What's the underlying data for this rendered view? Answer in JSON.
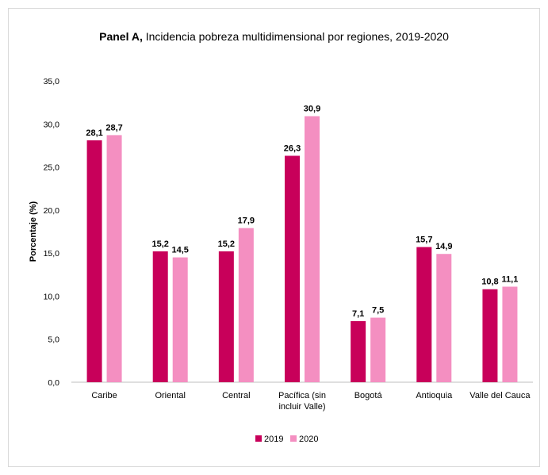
{
  "chart_data": {
    "type": "bar",
    "title_bold": "Panel A,",
    "title_rest": " Incidencia pobreza multidimensional por regiones, 2019-2020",
    "ylabel": "Porcentaje (%)",
    "xlabel": "",
    "ylim": [
      0,
      35
    ],
    "yticks": [
      "0,0",
      "5,0",
      "10,0",
      "15,0",
      "20,0",
      "25,0",
      "30,0",
      "35,0"
    ],
    "categories": [
      [
        "Caribe"
      ],
      [
        "Oriental"
      ],
      [
        "Central"
      ],
      [
        "Pacífica (sin",
        "incluir Valle)"
      ],
      [
        "Bogotá"
      ],
      [
        "Antioquia"
      ],
      [
        "Valle del Cauca"
      ]
    ],
    "series": [
      {
        "name": "2019",
        "color": "#c8005a",
        "values": [
          28.1,
          15.2,
          15.2,
          26.3,
          7.1,
          15.7,
          10.8
        ],
        "labels": [
          "28,1",
          "15,2",
          "15,2",
          "26,3",
          "7,1",
          "15,7",
          "10,8"
        ]
      },
      {
        "name": "2020",
        "color": "#f48fc1",
        "values": [
          28.7,
          14.5,
          17.9,
          30.9,
          7.5,
          14.9,
          11.1
        ],
        "labels": [
          "28,7",
          "14,5",
          "17,9",
          "30,9",
          "7,5",
          "14,9",
          "11,1"
        ]
      }
    ],
    "grid": false,
    "legend_position": "bottom"
  }
}
